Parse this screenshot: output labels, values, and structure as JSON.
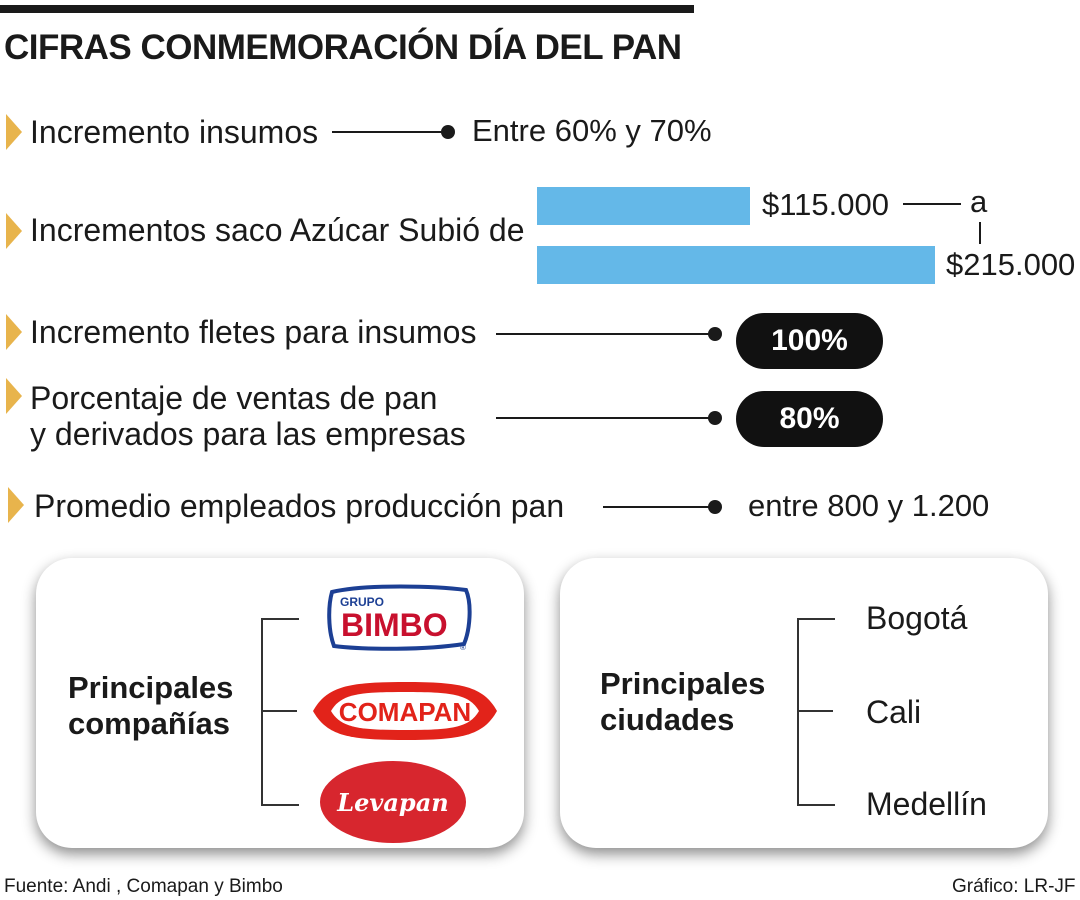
{
  "title": "CIFRAS CONMEMORACIÓN DÍA DEL PAN",
  "rows": [
    {
      "label": "Incremento insumos",
      "value": "Entre 60% y 70%"
    },
    {
      "label": "Incrementos saco  Azúcar Subió de",
      "from": "$115.000",
      "connector": "a",
      "to": "$215.000",
      "from_value": 115000,
      "to_value": 215000
    },
    {
      "label": "Incremento fletes para insumos",
      "value": "100%"
    },
    {
      "label_line1": "Porcentaje de ventas de pan",
      "label_line2": "y derivados para las empresas",
      "value": "80%"
    },
    {
      "label": "Promedio empleados producción pan",
      "value": "entre 800 y 1.200"
    }
  ],
  "companies": {
    "title_line1": "Principales",
    "title_line2": "compañías",
    "logos": [
      {
        "name": "GRUPO BIMBO",
        "top_text": "GRUPO",
        "main_text": "BIMBO",
        "reg": "®",
        "color": "#c8102e",
        "accent": "#1c3f94"
      },
      {
        "name": "COMAPAN",
        "text": "COMAPAN",
        "color": "#e2231a"
      },
      {
        "name": "Levapan",
        "text": "Levapan",
        "color": "#d7262e"
      }
    ]
  },
  "cities": {
    "title_line1": "Principales",
    "title_line2": "ciudades",
    "items": [
      "Bogotá",
      "Cali",
      "Medellín"
    ]
  },
  "footer": {
    "source": "Fuente: Andi , Comapan y Bimbo",
    "credit": "Gráfico: LR-JF"
  },
  "colors": {
    "accent_triangle": "#e8b44c",
    "bar": "#64b8e8",
    "pill": "#111111"
  }
}
